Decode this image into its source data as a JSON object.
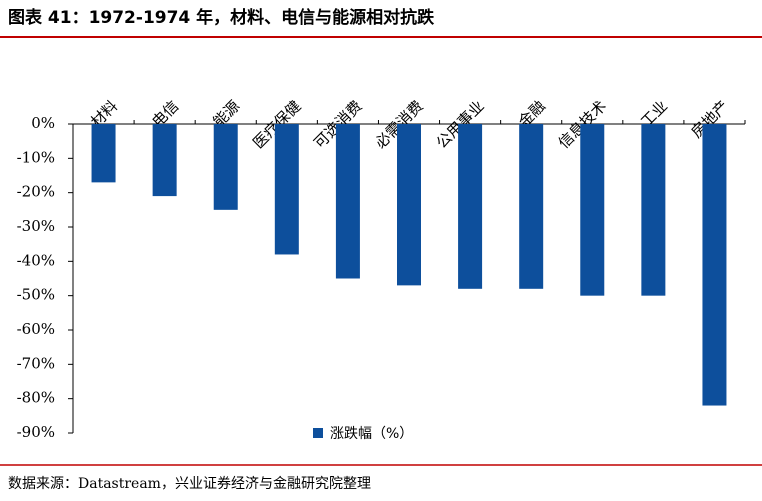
{
  "title": "图表 41：1972-1974 年，材料、电信与能源相对抗跌",
  "source": "数据来源：Datastream，兴业证券经济与金融研究院整理",
  "chart_data": {
    "type": "bar",
    "categories": [
      "材料",
      "电信",
      "能源",
      "医疗保健",
      "可选消费",
      "必需消费",
      "公用事业",
      "金融",
      "信息技术",
      "工业",
      "房地产"
    ],
    "series": [
      {
        "name": "涨跌幅（%）",
        "color": "#0d4f9c",
        "values": [
          -17,
          -21,
          -25,
          -38,
          -45,
          -47,
          -48,
          -48,
          -50,
          -50,
          -82
        ]
      }
    ],
    "ylim": [
      -90,
      0
    ],
    "yticks": [
      {
        "value": 0,
        "label": "0%"
      },
      {
        "value": -10,
        "label": "-10%"
      },
      {
        "value": -20,
        "label": "-20%"
      },
      {
        "value": -30,
        "label": "-30%"
      },
      {
        "value": -40,
        "label": "-40%"
      },
      {
        "value": -50,
        "label": "-50%"
      },
      {
        "value": -60,
        "label": "-60%"
      },
      {
        "value": -70,
        "label": "-70%"
      },
      {
        "value": -80,
        "label": "-80%"
      },
      {
        "value": -90,
        "label": "-90%"
      }
    ],
    "legend": "bottom"
  }
}
